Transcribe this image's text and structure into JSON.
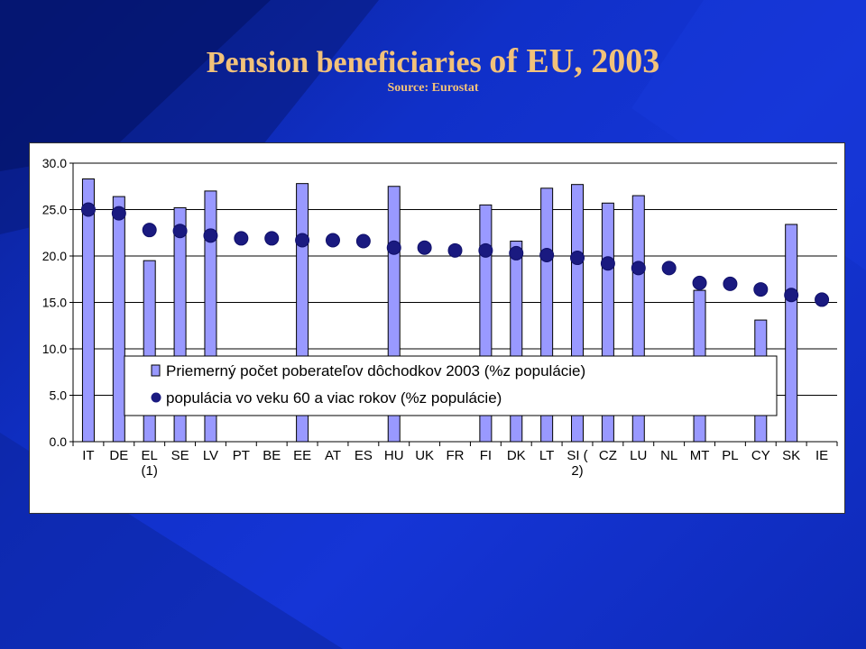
{
  "slide": {
    "title_part1": "Pension beneficiaries ",
    "title_part2": "of EU, 2003",
    "subtitle": "Source: Eurostat"
  },
  "chart_data": {
    "type": "bar",
    "title": "",
    "xlabel": "",
    "ylabel": "",
    "ylim": [
      0,
      30
    ],
    "yticks": [
      "0.0",
      "5.0",
      "10.0",
      "15.0",
      "20.0",
      "25.0",
      "30.0"
    ],
    "grid": true,
    "categories": [
      "IT",
      "DE",
      "EL",
      "SE",
      "LV",
      "PT",
      "BE",
      "EE",
      "AT",
      "ES",
      "HU",
      "UK",
      "FR",
      "FI",
      "DK",
      "LT",
      "SI",
      "CZ",
      "LU",
      "NL",
      "MT",
      "PL",
      "CY",
      "SK",
      "IE"
    ],
    "category_notes": [
      "",
      "",
      "(1)",
      "",
      "",
      "",
      "",
      "",
      "",
      "",
      "",
      "",
      "",
      "",
      "",
      "",
      "2)",
      "",
      "",
      "",
      "",
      "",
      "",
      "",
      ""
    ],
    "category_labels_raw": [
      "IT",
      "DE",
      "EL",
      "SE",
      "LV",
      "PT",
      "BE",
      "EE",
      "AT",
      "ES",
      "HU",
      "UK",
      "FR",
      "FI",
      "DK",
      "LT",
      "SI (",
      "CZ",
      "LU",
      "NL",
      "MT",
      "PL",
      "CY",
      "SK",
      "IE"
    ],
    "legend_position": "center-bottom",
    "series": [
      {
        "name": "Priemerný počet poberateľov dôchodkov 2003 (%z populácie)",
        "type": "bar",
        "color": "#9999ff",
        "values": [
          28.3,
          26.4,
          19.5,
          25.2,
          27.0,
          null,
          null,
          27.8,
          null,
          null,
          27.5,
          null,
          null,
          25.5,
          21.6,
          27.3,
          27.7,
          25.7,
          26.5,
          null,
          16.3,
          null,
          13.1,
          23.4,
          null
        ]
      },
      {
        "name": "populácia vo veku 60 a viac rokov (%z populácie)",
        "type": "scatter",
        "color": "#1a1a80",
        "values": [
          25.0,
          24.6,
          22.8,
          22.7,
          22.2,
          21.9,
          21.9,
          21.7,
          21.7,
          21.6,
          20.9,
          20.9,
          20.6,
          20.6,
          20.3,
          20.1,
          19.8,
          19.2,
          18.7,
          18.7,
          17.1,
          17.0,
          16.4,
          15.8,
          15.3
        ]
      }
    ]
  }
}
